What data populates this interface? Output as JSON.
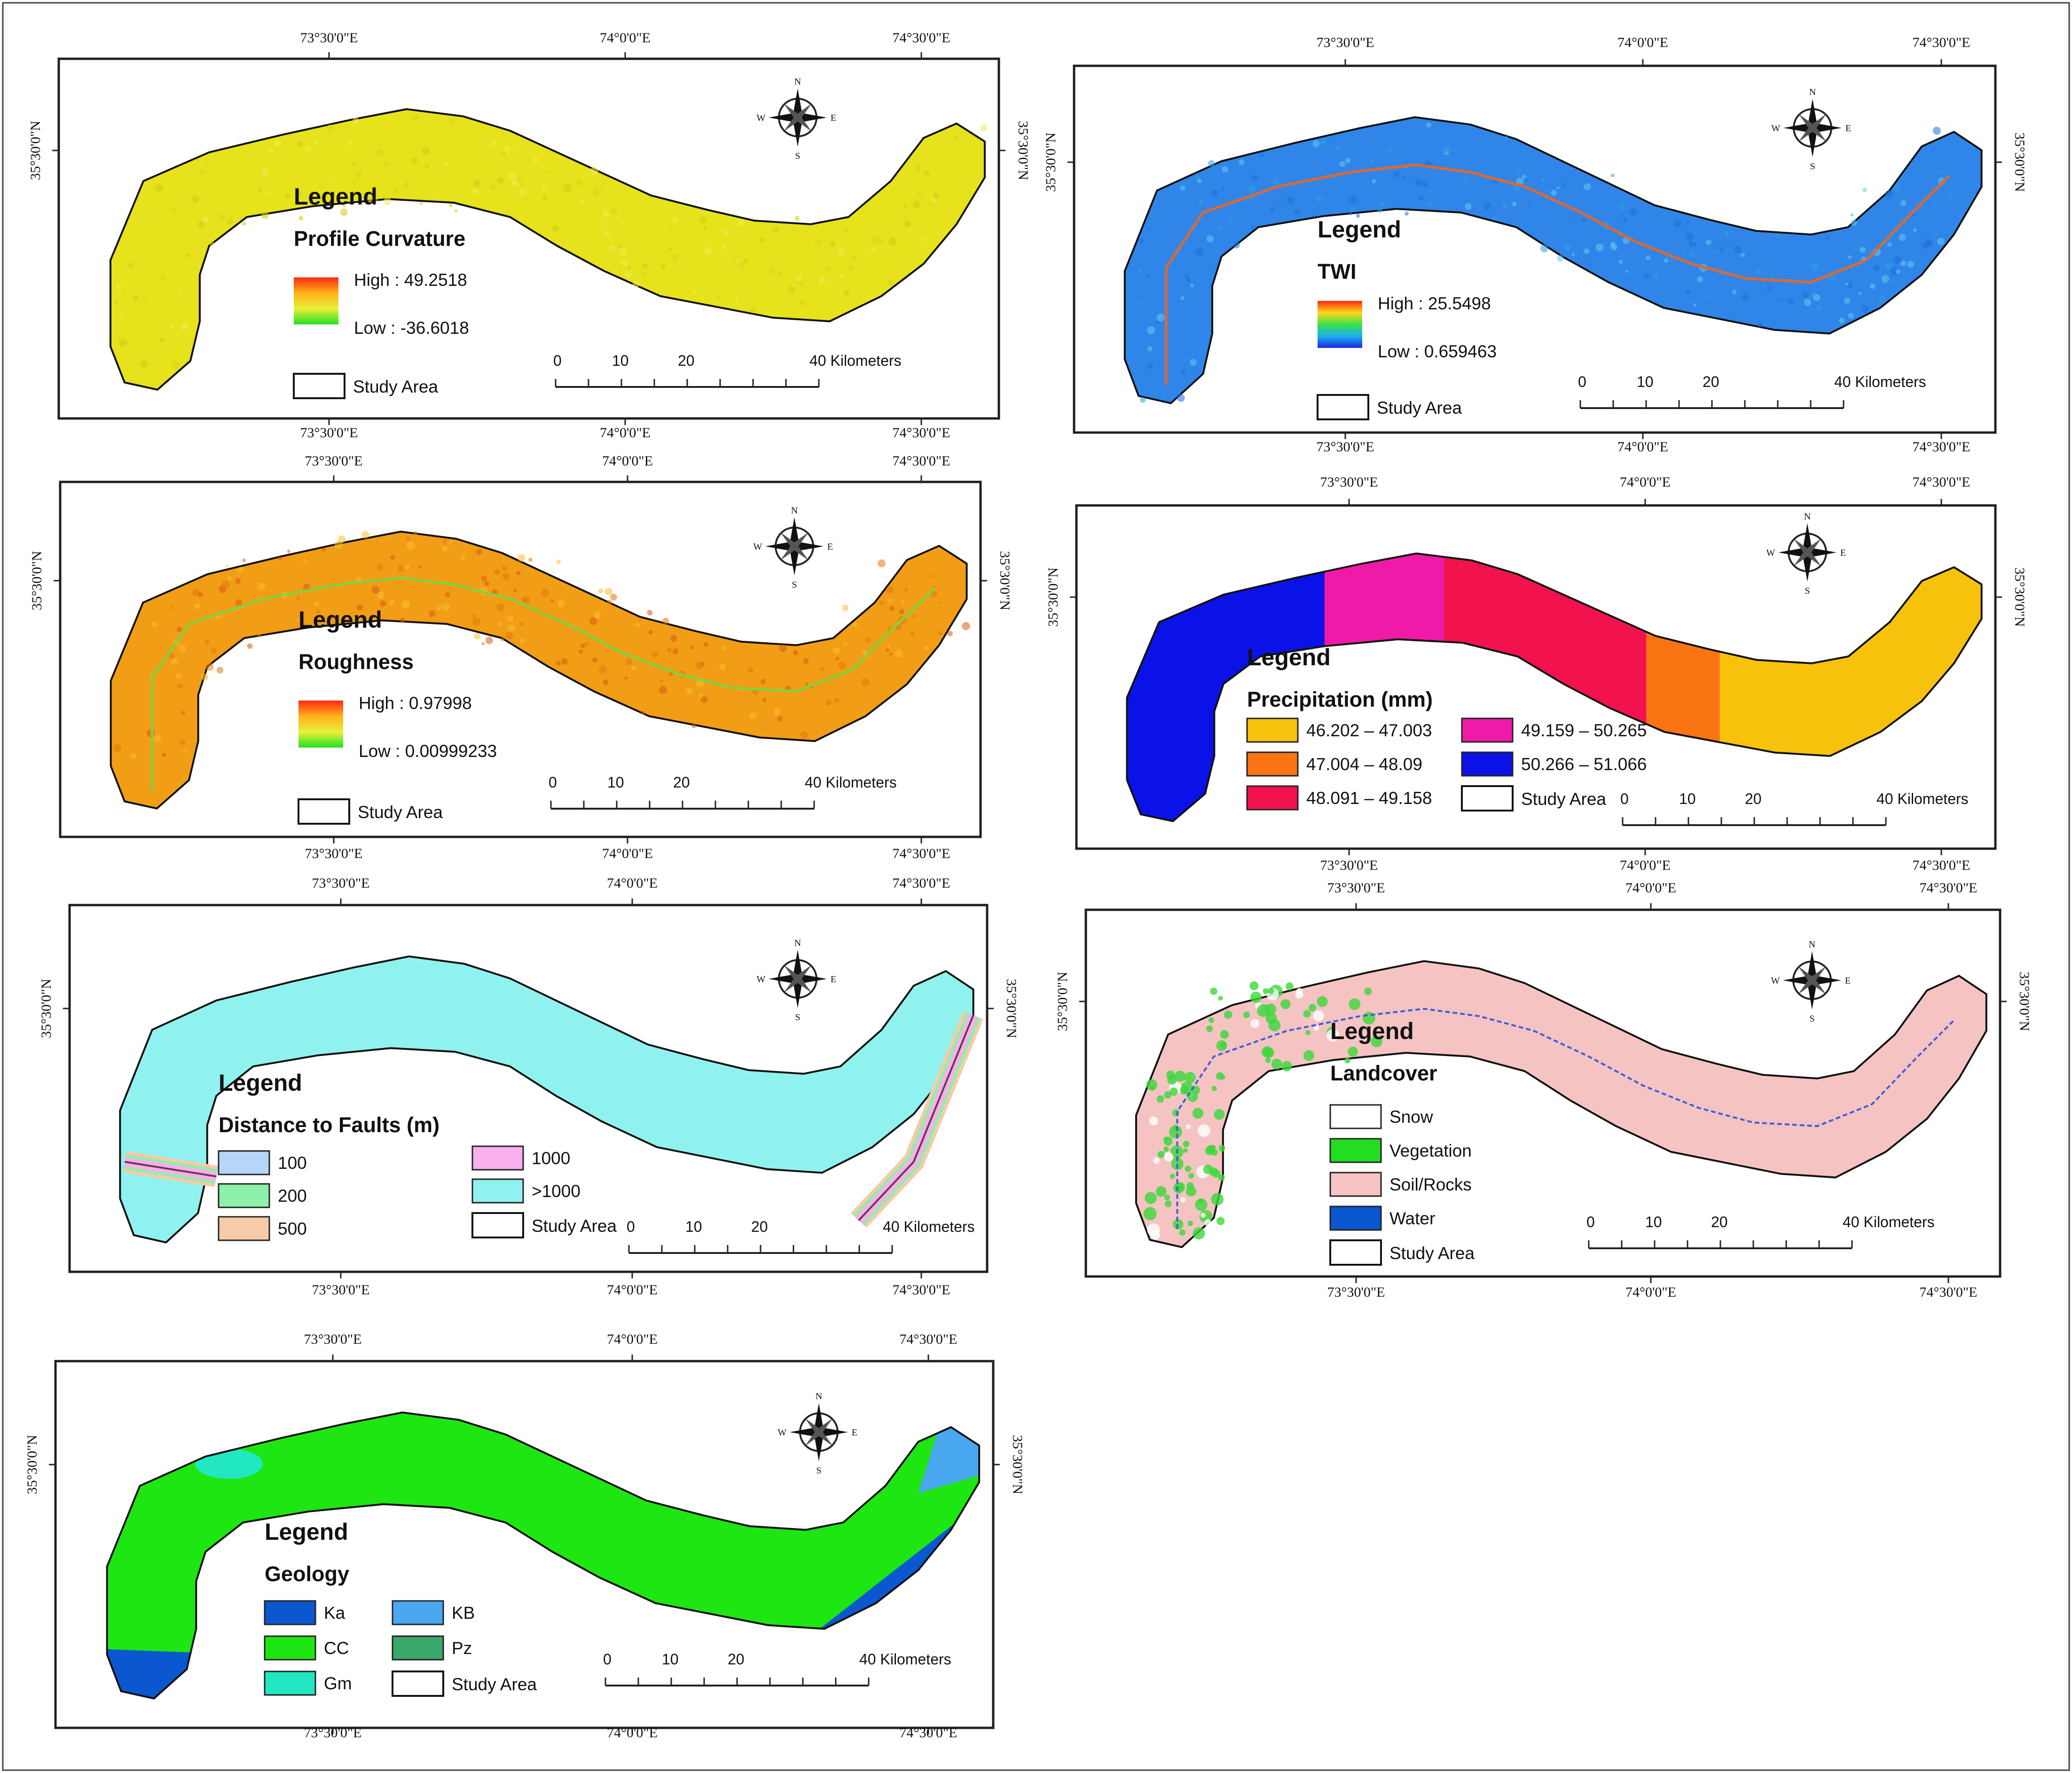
{
  "compass": {
    "n": "N",
    "s": "S",
    "e": "E",
    "w": "W"
  },
  "scalebar": {
    "t0": "0",
    "t1": "10",
    "t2": "20",
    "t3": "40 Kilometers"
  },
  "colors": {
    "frame": "#1f1f1f",
    "profile_fill": "#e6e21c",
    "twi_fill": "#2f86e8",
    "twi_line": "#d46a3c",
    "rough_fill": "#f29d16",
    "rough_line": "#7ad640",
    "faults_fill": "#8ff2ee",
    "landcover_fill": "#f6c3c3",
    "landcover_line": "#3b5ed8",
    "geology_fill": "#1ee612"
  },
  "panels": {
    "profile": {
      "lon_ticks": [
        "73°30'0\"E",
        "74°0'0\"E",
        "74°30'0\"E"
      ],
      "lat_tick": "35°30'0\"N",
      "legend_title": "Legend",
      "layer_title": "Profile Curvature",
      "high": "High : 49.2518",
      "low": "Low : -36.6018",
      "study_area": "Study Area"
    },
    "twi": {
      "lon_ticks": [
        "73°30'0\"E",
        "74°0'0\"E",
        "74°30'0\"E"
      ],
      "lat_tick": "35°30'0\"N",
      "legend_title": "Legend",
      "layer_title": "TWI",
      "high": "High : 25.5498",
      "low": "Low : 0.659463",
      "study_area": "Study Area"
    },
    "roughness": {
      "lon_ticks": [
        "73°30'0\"E",
        "74°0'0\"E",
        "74°30'0\"E"
      ],
      "lat_tick": "35°30'0\"N",
      "legend_title": "Legend",
      "layer_title": "Roughness",
      "high": "High : 0.97998",
      "low": "Low : 0.00999233",
      "study_area": "Study Area"
    },
    "precip": {
      "lon_ticks": [
        "73°30'0\"E",
        "74°0'0\"E",
        "74°30'0\"E"
      ],
      "lat_tick": "35°30'0\"N",
      "legend_title": "Legend",
      "layer_title": "Precipitation (mm)",
      "classes": [
        {
          "label": "46.202 – 47.003",
          "color": "#f7c20c"
        },
        {
          "label": "47.004 – 48.09",
          "color": "#fb7413"
        },
        {
          "label": "48.091 – 49.158",
          "color": "#f2124e"
        },
        {
          "label": "49.159 – 50.265",
          "color": "#f01aa9"
        },
        {
          "label": "50.266 – 51.066",
          "color": "#0a12e8"
        }
      ],
      "study_area": "Study Area"
    },
    "faults": {
      "lon_ticks": [
        "73°30'0\"E",
        "74°0'0\"E",
        "74°30'0\"E"
      ],
      "lat_tick": "35°30'0\"N",
      "legend_title": "Legend",
      "layer_title": "Distance to Faults (m)",
      "classes": [
        {
          "label": "100",
          "color": "#b6d6f7"
        },
        {
          "label": "200",
          "color": "#8ef0a8"
        },
        {
          "label": "500",
          "color": "#f7caa8"
        },
        {
          "label": "1000",
          "color": "#f7b0ec"
        },
        {
          "label": ">1000",
          "color": "#8ff2ee"
        }
      ],
      "study_area": "Study Area"
    },
    "landcover": {
      "lon_ticks": [
        "73°30'0\"E",
        "74°0'0\"E",
        "74°30'0\"E"
      ],
      "lat_tick": "35°30'0\"N",
      "legend_title": "Legend",
      "layer_title": "Landcover",
      "classes": [
        {
          "label": "Snow",
          "color": "#ffffff"
        },
        {
          "label": "Vegetation",
          "color": "#22dd22"
        },
        {
          "label": "Soil/Rocks",
          "color": "#f6c3c3"
        },
        {
          "label": "Water",
          "color": "#0b57d0"
        }
      ],
      "study_area": "Study Area"
    },
    "geology": {
      "lon_ticks": [
        "73°30'0\"E",
        "74°0'0\"E",
        "74°30'0\"E"
      ],
      "lat_tick": "35°30'0\"N",
      "legend_title": "Legend",
      "layer_title": "Geology",
      "classes": [
        {
          "label": "Ka",
          "color": "#0b57d0"
        },
        {
          "label": "CC",
          "color": "#1ee612"
        },
        {
          "label": "Gm",
          "color": "#22e8c2"
        },
        {
          "label": "KB",
          "color": "#4aa8f0"
        },
        {
          "label": "Pz",
          "color": "#3aa86a"
        }
      ],
      "study_area": "Study Area"
    }
  }
}
